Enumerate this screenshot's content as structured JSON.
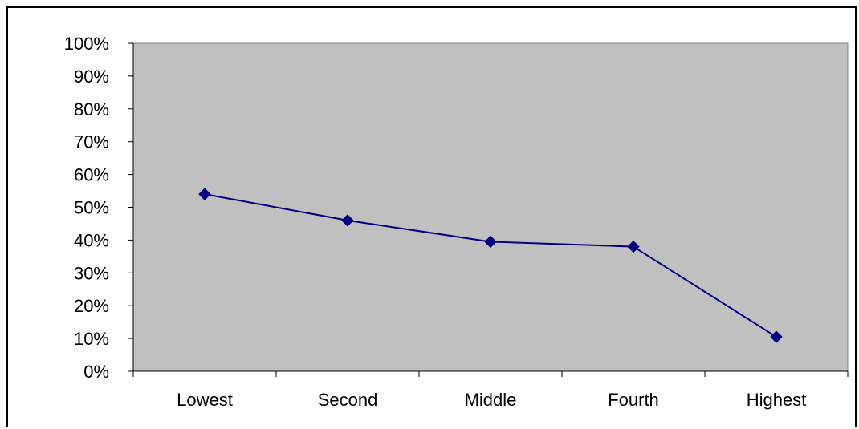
{
  "chart_data": {
    "type": "line",
    "categories": [
      "Lowest",
      "Second",
      "Middle",
      "Fourth",
      "Highest"
    ],
    "values": [
      0.54,
      0.46,
      0.395,
      0.38,
      0.105
    ],
    "ylim": [
      0,
      1
    ],
    "yticks": [
      "0%",
      "10%",
      "20%",
      "30%",
      "40%",
      "50%",
      "60%",
      "70%",
      "80%",
      "90%",
      "100%"
    ],
    "grid": false,
    "legend": "none",
    "colors": {
      "plot_background": "#c0c0c0",
      "line": "#000080",
      "marker": "#000080"
    }
  }
}
